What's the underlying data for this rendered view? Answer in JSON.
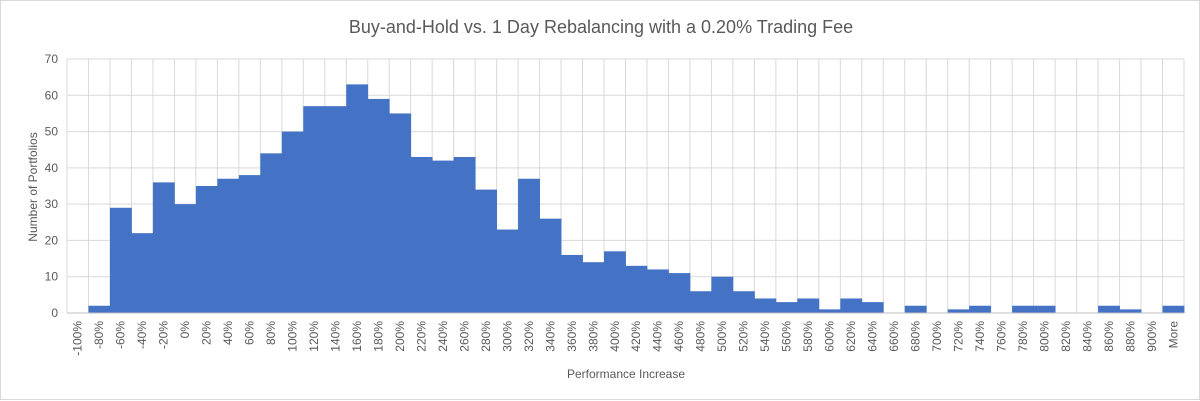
{
  "chart_data": {
    "type": "bar",
    "title": "Buy-and-Hold vs. 1 Day Rebalancing with a 0.20% Trading Fee",
    "xlabel": "Performance Increase",
    "ylabel": "Number of Portfolios",
    "ylim": [
      0,
      70
    ],
    "yticks": [
      0,
      10,
      20,
      30,
      40,
      50,
      60,
      70
    ],
    "grid": true,
    "bar_color": "#4472c4",
    "categories": [
      "-100%",
      "-80%",
      "-60%",
      "-40%",
      "-20%",
      "0%",
      "20%",
      "40%",
      "60%",
      "80%",
      "100%",
      "120%",
      "140%",
      "160%",
      "180%",
      "200%",
      "220%",
      "240%",
      "260%",
      "280%",
      "300%",
      "320%",
      "340%",
      "360%",
      "380%",
      "400%",
      "420%",
      "440%",
      "460%",
      "480%",
      "500%",
      "520%",
      "540%",
      "560%",
      "580%",
      "600%",
      "620%",
      "640%",
      "660%",
      "680%",
      "700%",
      "720%",
      "740%",
      "760%",
      "780%",
      "800%",
      "820%",
      "840%",
      "860%",
      "880%",
      "900%",
      "More"
    ],
    "values": [
      0,
      2,
      29,
      22,
      36,
      30,
      35,
      37,
      38,
      44,
      50,
      57,
      57,
      63,
      59,
      55,
      43,
      42,
      43,
      34,
      23,
      37,
      26,
      16,
      14,
      17,
      13,
      12,
      11,
      6,
      10,
      6,
      4,
      3,
      4,
      1,
      4,
      3,
      0,
      2,
      0,
      1,
      2,
      0,
      2,
      2,
      0,
      0,
      2,
      1,
      0,
      2
    ]
  }
}
